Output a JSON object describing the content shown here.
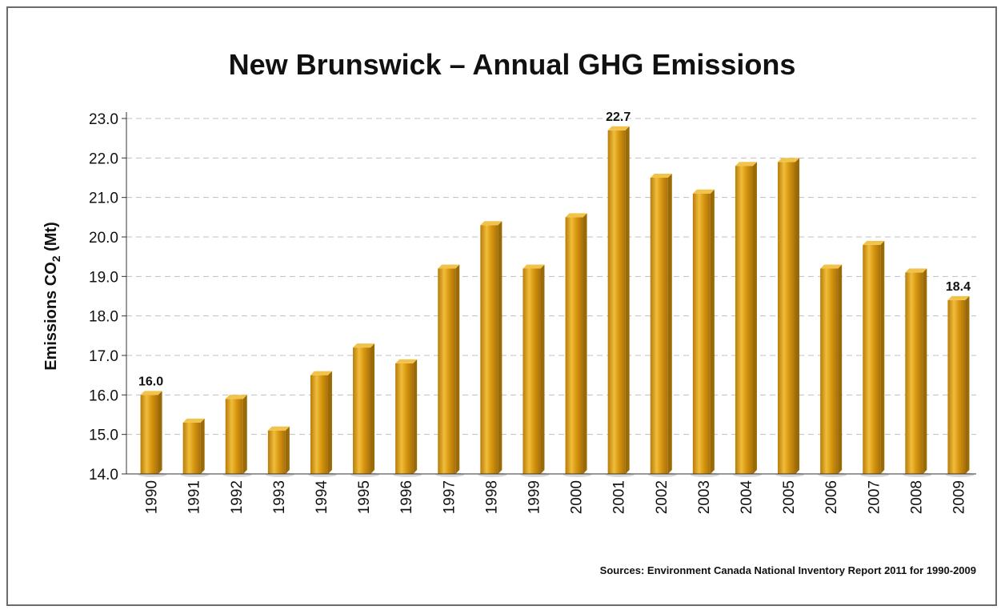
{
  "chart_data": {
    "type": "bar",
    "title": "New Brunswick – Annual GHG Emissions",
    "ylabel_main": "Emissions CO",
    "ylabel_sub": "2",
    "ylabel_unit": " (Mt)",
    "xlabel": "",
    "categories": [
      "1990",
      "1991",
      "1992",
      "1993",
      "1994",
      "1995",
      "1996",
      "1997",
      "1998",
      "1999",
      "2000",
      "2001",
      "2002",
      "2003",
      "2004",
      "2005",
      "2006",
      "2007",
      "2008",
      "2009"
    ],
    "values": [
      16.0,
      15.3,
      15.9,
      15.1,
      16.5,
      17.2,
      16.8,
      19.2,
      20.3,
      19.2,
      20.5,
      22.7,
      21.5,
      21.1,
      21.8,
      21.9,
      19.2,
      19.8,
      19.1,
      18.4
    ],
    "ylim": [
      14.0,
      23.0
    ],
    "yticks": [
      "14.0",
      "15.0",
      "16.0",
      "17.0",
      "18.0",
      "19.0",
      "20.0",
      "21.0",
      "22.0",
      "23.0"
    ],
    "data_labels": [
      {
        "index": 0,
        "text": "16.0"
      },
      {
        "index": 11,
        "text": "22.7"
      },
      {
        "index": 19,
        "text": "18.4"
      }
    ],
    "grid": true,
    "legend": "none",
    "bar_color": "#d79a12",
    "bar_highlight": "#f2c34a",
    "bar_shadow": "#9a6a06",
    "grid_color": "#bfbfbf",
    "source": "Sources: Environment Canada National Inventory Report 2011 for 1990-2009"
  }
}
